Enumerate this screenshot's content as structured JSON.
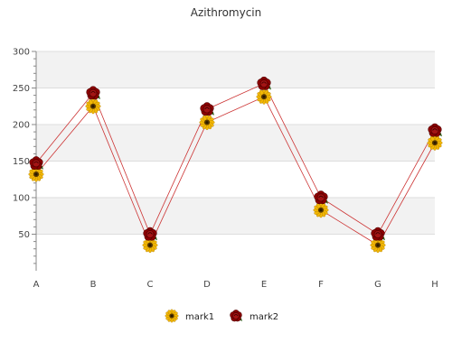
{
  "chart_data": {
    "type": "line",
    "title": "Azithromycin",
    "xlabel": "",
    "ylabel": "",
    "categories": [
      "A",
      "B",
      "C",
      "D",
      "E",
      "F",
      "G",
      "H"
    ],
    "ylim": [
      0,
      300
    ],
    "yticks": [
      50,
      100,
      150,
      200,
      250,
      300
    ],
    "grid": "horizontal bands",
    "legend_position": "bottom",
    "series": [
      {
        "name": "mark1",
        "marker": "sunflower-icon",
        "color": "#cc3333",
        "values": [
          132,
          225,
          35,
          203,
          238,
          83,
          35,
          175
        ]
      },
      {
        "name": "mark2",
        "marker": "rose-icon",
        "color": "#cc3333",
        "values": [
          147,
          243,
          50,
          221,
          256,
          100,
          50,
          192
        ]
      }
    ]
  },
  "colors": {
    "band": "#f2f2f2",
    "gridline": "#dddddd",
    "axis": "#888888",
    "line": "#cc3333",
    "sunflower_petal": "#f2b705",
    "sunflower_center": "#5a3a00",
    "rose_petal": "#8b0000"
  }
}
